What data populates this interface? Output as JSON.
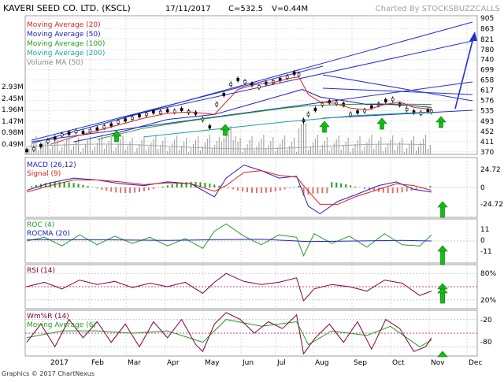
{
  "header": {
    "company": "KAVERI SEED CO. LTD. (KSCL)",
    "date": "17/11/2017",
    "close": "C=532.5",
    "volume": "V=0.44M",
    "watermark": "Charted By STOCKSBUZZCALLS"
  },
  "footer": {
    "copyright": "Graphics © 2017 ChartNexus"
  },
  "colors": {
    "bg": "#ffffff",
    "grid": "#c8c8c8",
    "price_up": "#000000",
    "ma20": "#e02020",
    "ma50": "#2020c0",
    "ma100": "#20a020",
    "ma200": "#20a0a0",
    "volume": "#999999",
    "macd": "#2020c0",
    "signal": "#e02020",
    "hist_up": "#20a020",
    "hist_down": "#e07070",
    "roc": "#20a020",
    "rocma": "#2020c0",
    "rsi": "#800040",
    "wmr": "#800040",
    "wmr_ma": "#20a020",
    "trendline": "#2030d0",
    "arrow_green": "#10c010",
    "arrow_blue": "#2030d0"
  },
  "chart_data": [
    {
      "panel": "price",
      "type": "line",
      "legend": [
        "Moving Average (20)",
        "Moving Average (50)",
        "Moving Average (100)",
        "Moving Average (200)",
        "Volume MA (50)"
      ],
      "x_ticks": [
        "2017",
        "Feb",
        "Mar",
        "Apr",
        "May",
        "Jun",
        "Jul",
        "Aug",
        "Sep",
        "Oct",
        "Nov",
        "Dec"
      ],
      "y_ticks_right": [
        905,
        863,
        821,
        780,
        740,
        699,
        658,
        617,
        576,
        535,
        493,
        452,
        411,
        370
      ],
      "volume_ticks_left": [
        "2.93M",
        "2.45M",
        "1.96M",
        "1.47M",
        "0.98M",
        "0.49M"
      ],
      "price_series": {
        "name": "Close",
        "points": [
          [
            0,
            375
          ],
          [
            6,
            382
          ],
          [
            12,
            395
          ],
          [
            18,
            412
          ],
          [
            24,
            425
          ],
          [
            30,
            438
          ],
          [
            36,
            445
          ],
          [
            42,
            452
          ],
          [
            48,
            448
          ],
          [
            54,
            455
          ],
          [
            60,
            462
          ],
          [
            66,
            470
          ],
          [
            72,
            478
          ],
          [
            78,
            490
          ],
          [
            84,
            498
          ],
          [
            90,
            505
          ],
          [
            96,
            515
          ],
          [
            102,
            520
          ],
          [
            108,
            530
          ],
          [
            114,
            528
          ],
          [
            120,
            535
          ],
          [
            126,
            532
          ],
          [
            132,
            540
          ],
          [
            138,
            530
          ],
          [
            144,
            525
          ],
          [
            150,
            500
          ],
          [
            156,
            470
          ],
          [
            162,
            560
          ],
          [
            168,
            600
          ],
          [
            174,
            640
          ],
          [
            180,
            660
          ],
          [
            186,
            650
          ],
          [
            192,
            640
          ],
          [
            198,
            630
          ],
          [
            204,
            645
          ],
          [
            210,
            650
          ],
          [
            216,
            660
          ],
          [
            222,
            670
          ],
          [
            228,
            685
          ],
          [
            232,
            680
          ],
          [
            236,
            495
          ],
          [
            240,
            520
          ],
          [
            246,
            540
          ],
          [
            252,
            560
          ],
          [
            258,
            570
          ],
          [
            264,
            565
          ],
          [
            270,
            560
          ],
          [
            276,
            520
          ],
          [
            282,
            530
          ],
          [
            288,
            535
          ],
          [
            294,
            550
          ],
          [
            300,
            560
          ],
          [
            306,
            575
          ],
          [
            312,
            580
          ],
          [
            318,
            560
          ],
          [
            324,
            540
          ],
          [
            330,
            530
          ],
          [
            336,
            525
          ],
          [
            342,
            535
          ],
          [
            345,
            532
          ]
        ]
      },
      "ma20": [
        [
          20,
          400
        ],
        [
          40,
          430
        ],
        [
          60,
          455
        ],
        [
          80,
          480
        ],
        [
          100,
          505
        ],
        [
          120,
          525
        ],
        [
          140,
          530
        ],
        [
          160,
          520
        ],
        [
          170,
          570
        ],
        [
          180,
          620
        ],
        [
          195,
          640
        ],
        [
          210,
          648
        ],
        [
          225,
          665
        ],
        [
          232,
          670
        ],
        [
          240,
          600
        ],
        [
          250,
          570
        ],
        [
          262,
          565
        ],
        [
          276,
          545
        ],
        [
          290,
          538
        ],
        [
          305,
          560
        ],
        [
          318,
          570
        ],
        [
          330,
          548
        ],
        [
          345,
          540
        ]
      ],
      "ma50": [
        [
          40,
          410
        ],
        [
          80,
          450
        ],
        [
          120,
          500
        ],
        [
          160,
          520
        ],
        [
          190,
          560
        ],
        [
          220,
          600
        ],
        [
          235,
          620
        ],
        [
          250,
          590
        ],
        [
          270,
          575
        ],
        [
          290,
          560
        ],
        [
          310,
          560
        ],
        [
          330,
          555
        ],
        [
          345,
          548
        ]
      ],
      "ma100": [
        [
          60,
          420
        ],
        [
          100,
          465
        ],
        [
          140,
          495
        ],
        [
          180,
          520
        ],
        [
          220,
          545
        ],
        [
          240,
          555
        ],
        [
          270,
          560
        ],
        [
          300,
          562
        ],
        [
          345,
          560
        ]
      ],
      "ma200": [
        [
          100,
          430
        ],
        [
          160,
          460
        ],
        [
          220,
          490
        ],
        [
          280,
          515
        ],
        [
          345,
          530
        ]
      ],
      "lows_marked_x": [
        148,
        286,
        412,
        485,
        560
      ],
      "annotation_target": 863
    },
    {
      "panel": "macd",
      "type": "line",
      "legend": [
        "MACD (26,12)",
        "Signal (9)"
      ],
      "y_ticks_right": [
        "24.72",
        "0",
        "-24.72"
      ],
      "macd": [
        [
          0,
          -3
        ],
        [
          20,
          5
        ],
        [
          40,
          10
        ],
        [
          60,
          8
        ],
        [
          80,
          4
        ],
        [
          100,
          2
        ],
        [
          120,
          6
        ],
        [
          140,
          4
        ],
        [
          160,
          -10
        ],
        [
          170,
          10
        ],
        [
          185,
          24
        ],
        [
          200,
          18
        ],
        [
          215,
          10
        ],
        [
          230,
          12
        ],
        [
          240,
          -20
        ],
        [
          250,
          -28
        ],
        [
          265,
          -15
        ],
        [
          280,
          -8
        ],
        [
          300,
          2
        ],
        [
          315,
          6
        ],
        [
          330,
          -2
        ],
        [
          345,
          -5
        ]
      ],
      "signal": [
        [
          0,
          -5
        ],
        [
          20,
          2
        ],
        [
          40,
          8
        ],
        [
          60,
          8
        ],
        [
          80,
          6
        ],
        [
          100,
          3
        ],
        [
          120,
          5
        ],
        [
          140,
          4
        ],
        [
          160,
          -4
        ],
        [
          170,
          2
        ],
        [
          185,
          16
        ],
        [
          200,
          18
        ],
        [
          215,
          13
        ],
        [
          230,
          11
        ],
        [
          240,
          -4
        ],
        [
          250,
          -18
        ],
        [
          265,
          -18
        ],
        [
          280,
          -10
        ],
        [
          300,
          -2
        ],
        [
          315,
          4
        ],
        [
          330,
          2
        ],
        [
          345,
          -3
        ]
      ]
    },
    {
      "panel": "roc",
      "type": "line",
      "legend": [
        "ROC (4)",
        "ROCMA (20)"
      ],
      "y_ticks_right": [
        "11",
        "0",
        "-11"
      ],
      "roc": [
        [
          0,
          0
        ],
        [
          15,
          3
        ],
        [
          30,
          -4
        ],
        [
          45,
          5
        ],
        [
          60,
          -3
        ],
        [
          75,
          4
        ],
        [
          90,
          -2
        ],
        [
          105,
          3
        ],
        [
          120,
          -4
        ],
        [
          135,
          2
        ],
        [
          150,
          -6
        ],
        [
          160,
          8
        ],
        [
          170,
          14
        ],
        [
          185,
          4
        ],
        [
          200,
          -3
        ],
        [
          215,
          5
        ],
        [
          230,
          3
        ],
        [
          236,
          -12
        ],
        [
          245,
          6
        ],
        [
          260,
          -2
        ],
        [
          275,
          4
        ],
        [
          290,
          -5
        ],
        [
          305,
          6
        ],
        [
          320,
          -3
        ],
        [
          335,
          -4
        ],
        [
          345,
          5
        ]
      ],
      "rocma": [
        [
          0,
          1
        ],
        [
          60,
          1
        ],
        [
          120,
          0.5
        ],
        [
          160,
          1
        ],
        [
          200,
          1.5
        ],
        [
          240,
          -0.5
        ],
        [
          280,
          0
        ],
        [
          320,
          0.5
        ],
        [
          345,
          0
        ]
      ]
    },
    {
      "panel": "rsi",
      "type": "line",
      "legend": [
        "RSI (14)"
      ],
      "y_ticks_right": [
        "80%",
        "20%"
      ],
      "rsi": [
        [
          0,
          50
        ],
        [
          15,
          60
        ],
        [
          30,
          45
        ],
        [
          45,
          65
        ],
        [
          60,
          55
        ],
        [
          75,
          62
        ],
        [
          90,
          48
        ],
        [
          105,
          58
        ],
        [
          120,
          50
        ],
        [
          135,
          60
        ],
        [
          150,
          35
        ],
        [
          160,
          60
        ],
        [
          170,
          80
        ],
        [
          185,
          62
        ],
        [
          200,
          55
        ],
        [
          215,
          60
        ],
        [
          230,
          70
        ],
        [
          236,
          18
        ],
        [
          245,
          45
        ],
        [
          260,
          55
        ],
        [
          275,
          50
        ],
        [
          290,
          40
        ],
        [
          305,
          65
        ],
        [
          320,
          58
        ],
        [
          335,
          30
        ],
        [
          345,
          40
        ]
      ]
    },
    {
      "panel": "williams",
      "type": "line",
      "legend": [
        "Wm%R (14)",
        "Moving Average (6)"
      ],
      "y_ticks_right": [
        "-20",
        "-80"
      ],
      "wmr": [
        [
          0,
          -70
        ],
        [
          12,
          -30
        ],
        [
          24,
          -80
        ],
        [
          36,
          -20
        ],
        [
          48,
          -60
        ],
        [
          60,
          -25
        ],
        [
          72,
          -70
        ],
        [
          84,
          -30
        ],
        [
          96,
          -80
        ],
        [
          108,
          -25
        ],
        [
          120,
          -60
        ],
        [
          132,
          -20
        ],
        [
          144,
          -75
        ],
        [
          150,
          -90
        ],
        [
          160,
          -30
        ],
        [
          170,
          -5
        ],
        [
          182,
          -20
        ],
        [
          194,
          -50
        ],
        [
          206,
          -25
        ],
        [
          218,
          -40
        ],
        [
          230,
          -10
        ],
        [
          236,
          -95
        ],
        [
          246,
          -60
        ],
        [
          258,
          -30
        ],
        [
          270,
          -70
        ],
        [
          282,
          -25
        ],
        [
          294,
          -85
        ],
        [
          306,
          -20
        ],
        [
          318,
          -40
        ],
        [
          330,
          -90
        ],
        [
          340,
          -80
        ],
        [
          345,
          -60
        ]
      ],
      "wmr_ma": [
        [
          0,
          -60
        ],
        [
          30,
          -45
        ],
        [
          60,
          -45
        ],
        [
          90,
          -50
        ],
        [
          120,
          -45
        ],
        [
          150,
          -70
        ],
        [
          170,
          -20
        ],
        [
          200,
          -35
        ],
        [
          230,
          -25
        ],
        [
          240,
          -75
        ],
        [
          260,
          -45
        ],
        [
          290,
          -55
        ],
        [
          310,
          -35
        ],
        [
          335,
          -80
        ],
        [
          345,
          -65
        ]
      ]
    }
  ]
}
